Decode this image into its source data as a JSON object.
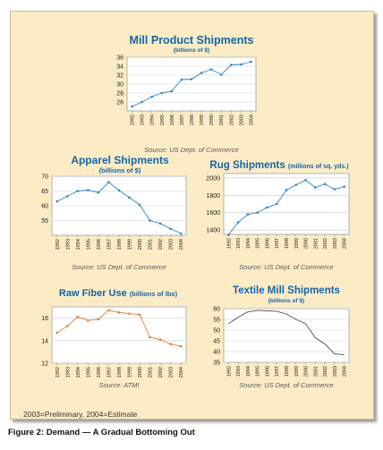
{
  "footnote": "2003=Preliminary, 2004=Estimate",
  "caption": "Figure 2: Demand — A Gradual Bottoming Out",
  "chart_data": [
    {
      "id": "mill",
      "type": "line",
      "title": "Mill Product Shipments",
      "subtitle": "(billions of $)",
      "source": "Source: US Dept. of Commerce",
      "x": [
        "1992",
        "1993",
        "1994",
        "1995",
        "1996",
        "1997",
        "1998",
        "1999",
        "2000",
        "2001",
        "2002",
        "2003",
        "2004"
      ],
      "series": [
        {
          "values": [
            25.0,
            26.0,
            27.2,
            28.0,
            28.4,
            31.0,
            31.1,
            32.5,
            33.3,
            32.1,
            34.3,
            34.4,
            35.0
          ]
        }
      ],
      "ylim": [
        24,
        36
      ],
      "yticks": [
        26,
        28,
        30,
        32,
        34,
        36
      ],
      "grid": true,
      "line_color": "#2f83c6",
      "show_markers": true
    },
    {
      "id": "apparel",
      "type": "line",
      "title": "Apparel Shipments",
      "subtitle": "(billions of $)",
      "source": "Source: US Dept. of Commerce",
      "x": [
        "1992",
        "1993",
        "1994",
        "1995",
        "1996",
        "1997",
        "1998",
        "1999",
        "2000",
        "2001",
        "2002",
        "2003",
        "2004"
      ],
      "series": [
        {
          "values": [
            61.5,
            63.2,
            65.0,
            65.3,
            64.5,
            68.0,
            65.2,
            62.8,
            60.3,
            55.0,
            54.0,
            52.2,
            50.6
          ]
        }
      ],
      "ylim": [
        50,
        70
      ],
      "yticks": [
        55,
        60,
        65,
        70
      ],
      "grid": true,
      "line_color": "#2f83c6",
      "show_markers": true
    },
    {
      "id": "rug",
      "type": "line",
      "title": "Rug Shipments",
      "subtitle": "(millions of sq. yds.)",
      "source": "Source: US Dept. of Commerce",
      "x": [
        "1992",
        "1993",
        "1994",
        "1995",
        "1996",
        "1997",
        "1998",
        "1999",
        "2000",
        "2001",
        "2002",
        "2003",
        "2004"
      ],
      "series": [
        {
          "values": [
            1345,
            1490,
            1580,
            1600,
            1660,
            1700,
            1860,
            1920,
            1975,
            1890,
            1930,
            1870,
            1900
          ]
        }
      ],
      "ylim": [
        1350,
        2050
      ],
      "yticks": [
        1400,
        1600,
        1800,
        2000
      ],
      "grid": true,
      "line_color": "#2f83c6",
      "show_markers": true
    },
    {
      "id": "fiber",
      "type": "line",
      "title": "Raw Fiber Use",
      "subtitle": "(billions of lbs)",
      "source": "Source: ATMI",
      "x": [
        "1992",
        "1993",
        "1994",
        "1995",
        "1996",
        "1997",
        "1998",
        "1999",
        "2000",
        "2001",
        "2002",
        "2003",
        "2004"
      ],
      "series": [
        {
          "values": [
            14.7,
            15.3,
            16.1,
            15.8,
            15.9,
            16.7,
            16.5,
            16.4,
            16.3,
            14.3,
            14.1,
            13.7,
            13.5
          ]
        }
      ],
      "ylim": [
        12,
        17
      ],
      "yticks": [
        12,
        14,
        16
      ],
      "grid": true,
      "line_color": "#e07b39",
      "show_markers": true
    },
    {
      "id": "textile",
      "type": "line",
      "title": "Textile Mill Shipments",
      "subtitle": "(billions of $)",
      "source": "Source: US Dept. of Commerce",
      "x": [
        "1992",
        "1993",
        "1994",
        "1995",
        "1996",
        "1997",
        "1998",
        "1999",
        "2000",
        "2001",
        "2002",
        "2003",
        "2004"
      ],
      "series": [
        {
          "values": [
            53.0,
            56.0,
            58.5,
            59.2,
            59.0,
            58.8,
            57.5,
            55.0,
            53.0,
            46.5,
            43.5,
            39.0,
            38.5
          ]
        }
      ],
      "ylim": [
        35,
        60
      ],
      "yticks": [
        35,
        40,
        45,
        50,
        55,
        60
      ],
      "grid": true,
      "line_color": "#4a4a4a",
      "show_markers": false
    }
  ]
}
